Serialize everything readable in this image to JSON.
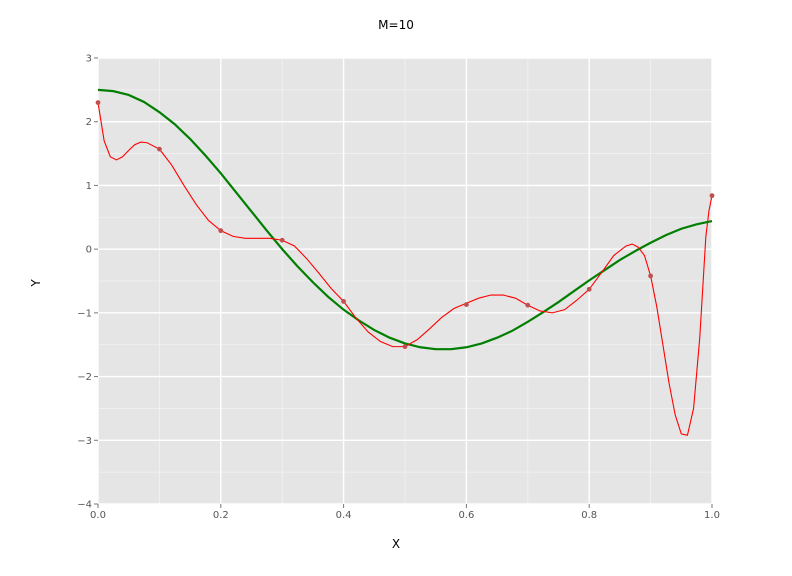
{
  "chart_data": {
    "type": "line",
    "title": "M=10",
    "xlabel": "X",
    "ylabel": "Y",
    "xlim": [
      0.0,
      1.0
    ],
    "ylim": [
      -4,
      3
    ],
    "grid": true,
    "x_ticks": [
      0.0,
      0.2,
      0.4,
      0.6,
      0.8,
      1.0
    ],
    "x_tick_labels": [
      "0.0",
      "0.2",
      "0.4",
      "0.6",
      "0.8",
      "1.0"
    ],
    "y_ticks": [
      -4,
      -3,
      -2,
      -1,
      0,
      1,
      2,
      3
    ],
    "y_tick_labels": [
      "−4",
      "−3",
      "−2",
      "−1",
      "0",
      "1",
      "2",
      "3"
    ],
    "series": [
      {
        "kind": "points",
        "color": "#c0504d",
        "x": [
          0.0,
          0.1,
          0.2,
          0.3,
          0.4,
          0.5,
          0.6,
          0.7,
          0.8,
          0.9,
          1.0
        ],
        "y": [
          2.3,
          1.57,
          0.29,
          0.14,
          -0.82,
          -1.53,
          -0.87,
          -0.88,
          -0.63,
          -0.42,
          0.84
        ]
      },
      {
        "kind": "fit",
        "color": "#ff0000",
        "x": [
          0.0,
          0.01,
          0.02,
          0.03,
          0.04,
          0.05,
          0.06,
          0.07,
          0.08,
          0.09,
          0.1,
          0.12,
          0.14,
          0.16,
          0.18,
          0.2,
          0.22,
          0.24,
          0.26,
          0.28,
          0.3,
          0.32,
          0.34,
          0.36,
          0.38,
          0.4,
          0.42,
          0.44,
          0.46,
          0.48,
          0.5,
          0.52,
          0.54,
          0.56,
          0.58,
          0.6,
          0.62,
          0.64,
          0.66,
          0.68,
          0.7,
          0.72,
          0.74,
          0.76,
          0.78,
          0.8,
          0.82,
          0.84,
          0.86,
          0.87,
          0.88,
          0.89,
          0.9,
          0.91,
          0.92,
          0.93,
          0.94,
          0.95,
          0.96,
          0.97,
          0.98,
          0.99,
          0.995,
          1.0
        ],
        "y": [
          2.3,
          1.7,
          1.45,
          1.4,
          1.45,
          1.55,
          1.64,
          1.68,
          1.67,
          1.62,
          1.57,
          1.32,
          1.0,
          0.7,
          0.45,
          0.29,
          0.2,
          0.17,
          0.17,
          0.17,
          0.14,
          0.05,
          -0.15,
          -0.38,
          -0.62,
          -0.82,
          -1.08,
          -1.3,
          -1.45,
          -1.53,
          -1.53,
          -1.42,
          -1.25,
          -1.07,
          -0.93,
          -0.85,
          -0.77,
          -0.72,
          -0.72,
          -0.77,
          -0.88,
          -0.97,
          -1.0,
          -0.95,
          -0.8,
          -0.63,
          -0.37,
          -0.1,
          0.05,
          0.08,
          0.03,
          -0.1,
          -0.42,
          -0.9,
          -1.5,
          -2.1,
          -2.6,
          -2.9,
          -2.92,
          -2.5,
          -1.4,
          0.2,
          0.6,
          0.84
        ]
      },
      {
        "kind": "true",
        "color": "#007f00",
        "x": [
          0.0,
          0.025,
          0.05,
          0.075,
          0.1,
          0.125,
          0.15,
          0.175,
          0.2,
          0.225,
          0.25,
          0.275,
          0.3,
          0.325,
          0.35,
          0.375,
          0.4,
          0.425,
          0.45,
          0.475,
          0.5,
          0.525,
          0.55,
          0.575,
          0.6,
          0.625,
          0.65,
          0.675,
          0.7,
          0.725,
          0.75,
          0.775,
          0.8,
          0.825,
          0.85,
          0.875,
          0.9,
          0.925,
          0.95,
          0.975,
          1.0
        ],
        "y": [
          2.5,
          2.48,
          2.42,
          2.31,
          2.15,
          1.96,
          1.73,
          1.47,
          1.19,
          0.89,
          0.59,
          0.29,
          0.0,
          -0.27,
          -0.52,
          -0.75,
          -0.95,
          -1.12,
          -1.27,
          -1.39,
          -1.48,
          -1.54,
          -1.57,
          -1.57,
          -1.54,
          -1.48,
          -1.39,
          -1.28,
          -1.14,
          -0.99,
          -0.83,
          -0.66,
          -0.49,
          -0.33,
          -0.17,
          -0.03,
          0.1,
          0.22,
          0.32,
          0.39,
          0.44
        ]
      }
    ]
  }
}
